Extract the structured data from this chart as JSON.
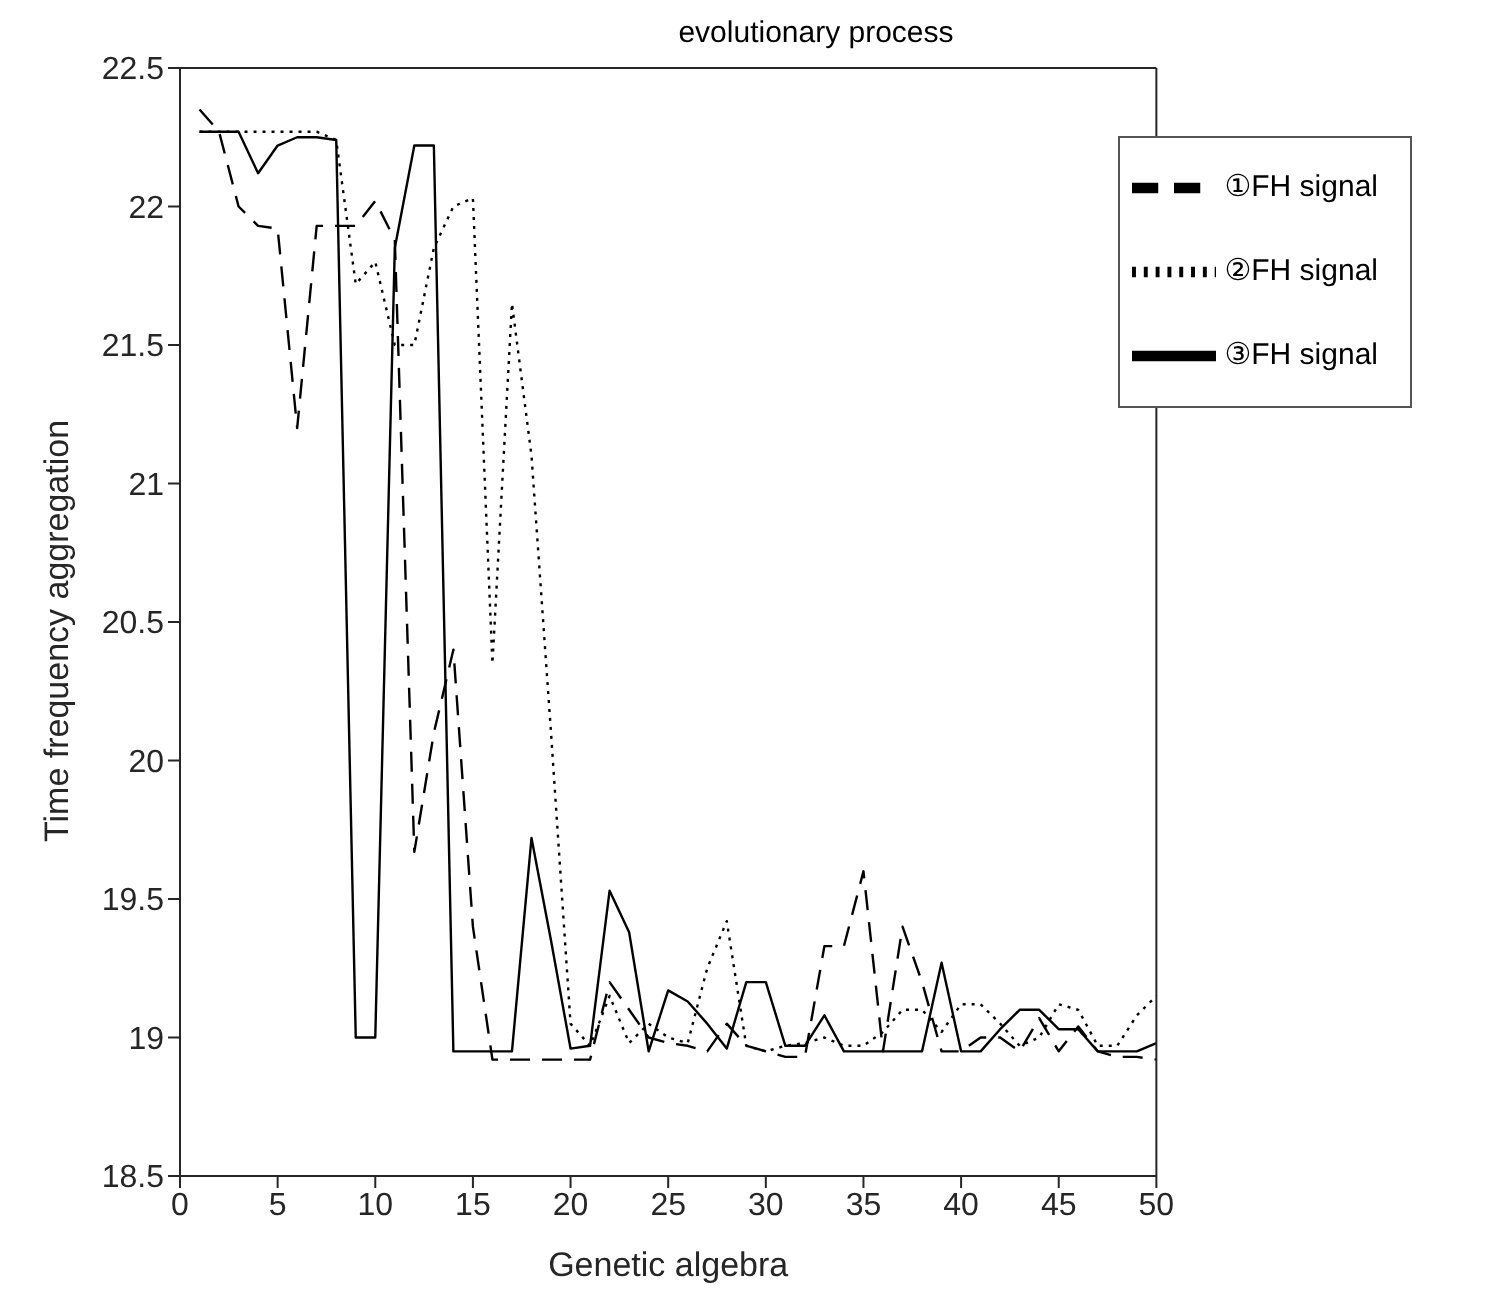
{
  "chart_data": {
    "type": "line",
    "title": "evolutionary process",
    "xlabel": "Genetic algebra",
    "ylabel": "Time frequency aggregation",
    "x": [
      1,
      2,
      3,
      4,
      5,
      6,
      7,
      8,
      9,
      10,
      11,
      12,
      13,
      14,
      15,
      16,
      17,
      18,
      19,
      20,
      21,
      22,
      23,
      24,
      25,
      26,
      27,
      28,
      29,
      30,
      31,
      32,
      33,
      34,
      35,
      36,
      37,
      38,
      39,
      40,
      41,
      42,
      43,
      44,
      45,
      46,
      47,
      48,
      49,
      50
    ],
    "series": [
      {
        "name": "①FH signal",
        "color": "#000000",
        "line_style": "dashed",
        "values": [
          22.35,
          22.27,
          22.0,
          21.93,
          21.92,
          21.2,
          21.93,
          21.93,
          21.93,
          22.02,
          21.88,
          19.67,
          20.1,
          20.4,
          19.4,
          18.92,
          18.92,
          18.92,
          18.92,
          18.92,
          18.92,
          19.2,
          19.1,
          19.0,
          18.98,
          18.97,
          18.95,
          19.05,
          18.97,
          18.95,
          18.93,
          18.93,
          19.33,
          19.33,
          19.6,
          18.95,
          19.4,
          19.2,
          18.95,
          18.95,
          19.0,
          19.0,
          18.95,
          19.07,
          18.95,
          19.04,
          18.95,
          18.93,
          18.93,
          18.92
        ]
      },
      {
        "name": "②FH signal",
        "color": "#000000",
        "line_style": "dotted",
        "values": [
          22.27,
          22.27,
          22.27,
          22.27,
          22.27,
          22.27,
          22.27,
          22.24,
          21.72,
          21.8,
          21.5,
          21.5,
          21.85,
          22.0,
          22.03,
          20.35,
          21.65,
          21.1,
          20.1,
          19.05,
          18.97,
          19.15,
          18.98,
          19.05,
          19.0,
          18.98,
          19.25,
          19.42,
          18.97,
          18.95,
          18.97,
          18.98,
          19.0,
          18.97,
          18.97,
          19.02,
          19.1,
          19.1,
          19.02,
          19.12,
          19.12,
          19.05,
          18.97,
          19.0,
          19.12,
          19.1,
          18.97,
          18.97,
          19.08,
          19.15
        ]
      },
      {
        "name": "③FH signal",
        "color": "#000000",
        "line_style": "solid",
        "values": [
          22.27,
          22.27,
          22.27,
          22.12,
          22.22,
          22.25,
          22.25,
          22.24,
          19.0,
          19.0,
          21.85,
          22.22,
          22.22,
          18.95,
          18.95,
          18.95,
          18.95,
          19.72,
          19.35,
          18.96,
          18.97,
          19.53,
          19.38,
          18.95,
          19.17,
          19.13,
          19.05,
          18.96,
          19.2,
          19.2,
          18.97,
          18.97,
          19.08,
          18.95,
          18.95,
          18.95,
          18.95,
          18.95,
          19.27,
          18.95,
          18.95,
          19.03,
          19.1,
          19.1,
          19.03,
          19.03,
          18.95,
          18.95,
          18.95,
          18.98
        ]
      }
    ],
    "xlim": [
      0,
      50
    ],
    "xticks": [
      0,
      5,
      10,
      15,
      20,
      25,
      30,
      35,
      40,
      45,
      50
    ],
    "ylim": [
      18.5,
      22.5
    ],
    "yticks": [
      18.5,
      19,
      19.5,
      20,
      20.5,
      21,
      21.5,
      22,
      22.5
    ],
    "grid": false,
    "legend": "top right",
    "marker": "none"
  }
}
